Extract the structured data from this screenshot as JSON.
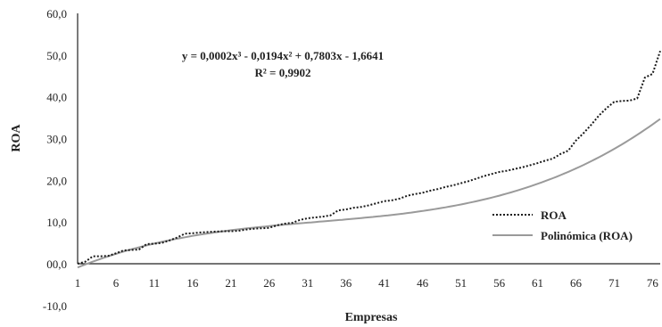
{
  "chart_data": {
    "type": "line",
    "title": "",
    "xlabel": "Empresas",
    "ylabel": "ROA",
    "xlim": [
      1,
      77
    ],
    "ylim": [
      -10,
      60
    ],
    "x_tick_labels": [
      "1",
      "6",
      "11",
      "16",
      "21",
      "26",
      "31",
      "36",
      "41",
      "46",
      "51",
      "56",
      "61",
      "66",
      "71",
      "76"
    ],
    "y_tick_labels": [
      "-10,0",
      "00,0",
      "10,0",
      "20,0",
      "30,0",
      "40,0",
      "50,0",
      "60,0"
    ],
    "y_tick_values": [
      -10,
      0,
      10,
      20,
      30,
      40,
      50,
      60
    ],
    "grid": false,
    "legend_position": "bottom-right",
    "annotation": {
      "equation": "y = 0,0002x³ - 0,0194x² + 0,7803x - 1,6641",
      "r_squared": "R² = 0,9902"
    },
    "series": [
      {
        "name": "ROA",
        "style": "dotted",
        "color": "#1a1a1a",
        "x": [
          1,
          2,
          3,
          4,
          5,
          6,
          7,
          8,
          9,
          10,
          11,
          12,
          13,
          14,
          15,
          16,
          17,
          18,
          19,
          20,
          21,
          22,
          23,
          24,
          25,
          26,
          27,
          28,
          29,
          30,
          31,
          32,
          33,
          34,
          35,
          36,
          37,
          38,
          39,
          40,
          41,
          42,
          43,
          44,
          45,
          46,
          47,
          48,
          49,
          50,
          51,
          52,
          53,
          54,
          55,
          56,
          57,
          58,
          59,
          60,
          61,
          62,
          63,
          64,
          65,
          66,
          67,
          68,
          69,
          70,
          71,
          72,
          73,
          74,
          75,
          76,
          77
        ],
        "values": [
          0,
          0.5,
          1.8,
          1.8,
          1.9,
          2.5,
          3.2,
          3.3,
          3.4,
          4.7,
          4.8,
          5,
          5.6,
          6.3,
          7.2,
          7.3,
          7.5,
          7.6,
          7.7,
          7.8,
          7.8,
          7.9,
          8.2,
          8.4,
          8.5,
          8.6,
          9.2,
          9.6,
          9.8,
          10.5,
          10.9,
          11.1,
          11.3,
          11.6,
          12.8,
          13,
          13.4,
          13.6,
          14,
          14.5,
          15,
          15.2,
          15.6,
          16.3,
          16.7,
          17,
          17.5,
          17.9,
          18.4,
          18.8,
          19.3,
          19.8,
          20.4,
          21,
          21.5,
          22,
          22.3,
          22.7,
          23.1,
          23.6,
          24.1,
          24.7,
          25.2,
          26.3,
          27.1,
          29.5,
          31.3,
          33.3,
          35.5,
          37.3,
          38.8,
          39,
          39.1,
          39.6,
          44.6,
          45.5,
          51
        ]
      },
      {
        "name": "Polinómica (ROA)",
        "style": "solid",
        "color": "#9a9a9a",
        "coefficients": [
          0.0002,
          -0.0194,
          0.7803,
          -1.6641
        ],
        "x_range": [
          1,
          77
        ]
      }
    ]
  }
}
